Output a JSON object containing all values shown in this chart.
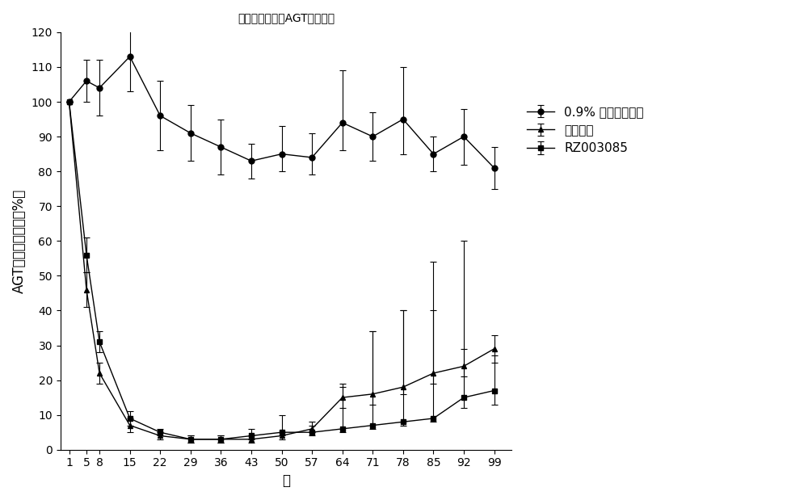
{
  "title": "食蟹猴血清中的AGT蛋白水平",
  "xlabel": "天",
  "ylabel": "AGT蛋白相对水平（%）",
  "x": [
    1,
    5,
    8,
    15,
    22,
    29,
    36,
    43,
    50,
    57,
    64,
    71,
    78,
    85,
    92,
    99
  ],
  "series": [
    {
      "label": "0.9% 氯化钠注射液",
      "marker": "o",
      "y": [
        100,
        106,
        104,
        113,
        96,
        91,
        87,
        83,
        85,
        84,
        94,
        90,
        95,
        85,
        90,
        81
      ],
      "yerr_lo": [
        0,
        6,
        8,
        10,
        10,
        8,
        8,
        5,
        5,
        5,
        8,
        7,
        10,
        5,
        8,
        6
      ],
      "yerr_hi": [
        0,
        6,
        8,
        15,
        10,
        8,
        8,
        5,
        8,
        7,
        15,
        7,
        15,
        5,
        8,
        6
      ]
    },
    {
      "label": "阳性对照",
      "marker": "^",
      "y": [
        100,
        46,
        22,
        7,
        4,
        3,
        3,
        3,
        4,
        6,
        15,
        16,
        18,
        22,
        24,
        29
      ],
      "yerr_lo": [
        0,
        5,
        3,
        2,
        1,
        1,
        1,
        1,
        1,
        1,
        3,
        3,
        2,
        3,
        3,
        4
      ],
      "yerr_hi": [
        0,
        5,
        3,
        2,
        1,
        1,
        1,
        1,
        1,
        2,
        3,
        18,
        22,
        18,
        5,
        4
      ]
    },
    {
      "label": "RZ003085",
      "marker": "s",
      "y": [
        100,
        56,
        31,
        9,
        5,
        3,
        3,
        4,
        5,
        5,
        6,
        7,
        8,
        9,
        15,
        17
      ],
      "yerr_lo": [
        0,
        5,
        3,
        2,
        1,
        1,
        1,
        1,
        1,
        1,
        1,
        1,
        1,
        1,
        3,
        4
      ],
      "yerr_hi": [
        0,
        5,
        3,
        2,
        1,
        1,
        1,
        2,
        5,
        2,
        13,
        27,
        32,
        45,
        45,
        10
      ]
    }
  ],
  "ylim": [
    0,
    120
  ],
  "yticks": [
    0,
    10,
    20,
    30,
    40,
    50,
    60,
    70,
    80,
    90,
    100,
    110,
    120
  ],
  "xticks": [
    1,
    5,
    8,
    15,
    22,
    29,
    36,
    43,
    50,
    57,
    64,
    71,
    78,
    85,
    92,
    99
  ],
  "line_color": "#000000",
  "background_color": "#ffffff",
  "title_fontsize": 15,
  "axis_fontsize": 12,
  "tick_fontsize": 10,
  "legend_fontsize": 11
}
